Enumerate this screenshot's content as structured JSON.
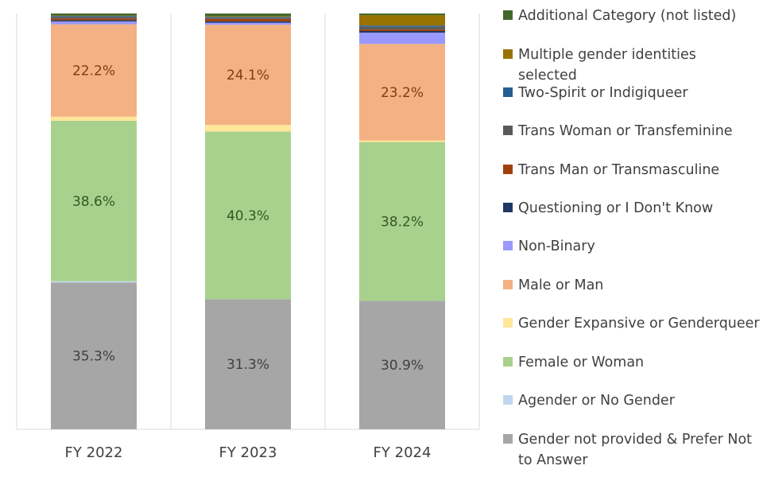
{
  "chart_data": {
    "type": "bar",
    "stacked": true,
    "normalized": true,
    "categories": [
      "FY 2022",
      "FY 2023",
      "FY 2024"
    ],
    "ylim": [
      0,
      100
    ],
    "grid": false,
    "legend_position": "right",
    "series": [
      {
        "name": "Gender not provided & Prefer Not to Answer",
        "color": "#a6a6a6",
        "label_color": "#404040",
        "values": [
          35.3,
          31.3,
          30.9
        ],
        "labels": [
          "35.3%",
          "31.3%",
          "30.9%"
        ]
      },
      {
        "name": "Agender or No Gender",
        "color": "#bdd7ee",
        "values": [
          0.3,
          0.0,
          0.0
        ],
        "labels": [
          "",
          "",
          ""
        ]
      },
      {
        "name": "Female or Woman",
        "color": "#a9d18e",
        "label_color": "#375623",
        "values": [
          38.6,
          40.3,
          38.2
        ],
        "labels": [
          "38.6%",
          "40.3%",
          "38.2%"
        ]
      },
      {
        "name": "Gender Expansive or Genderqueer",
        "color": "#ffe699",
        "values": [
          1.0,
          1.6,
          0.4
        ],
        "labels": [
          "",
          "",
          ""
        ]
      },
      {
        "name": "Male or Man",
        "color": "#f4b183",
        "label_color": "#843c0c",
        "values": [
          22.2,
          24.1,
          23.2
        ],
        "labels": [
          "22.2%",
          "24.1%",
          "23.2%"
        ]
      },
      {
        "name": "Non-Binary",
        "color": "#9999ff",
        "values": [
          0.7,
          0.5,
          2.7
        ],
        "labels": [
          "",
          "",
          ""
        ]
      },
      {
        "name": "Questioning or I Don't Know",
        "color": "#1f3864",
        "values": [
          0.3,
          0.3,
          0.4
        ],
        "labels": [
          "",
          "",
          ""
        ]
      },
      {
        "name": "Trans Man or Transmasculine",
        "color": "#a0410d",
        "values": [
          0.4,
          0.6,
          0.4
        ],
        "labels": [
          "",
          "",
          ""
        ]
      },
      {
        "name": "Trans Woman or Transfeminine",
        "color": "#595959",
        "values": [
          0.4,
          0.3,
          0.6
        ],
        "labels": [
          "",
          "",
          ""
        ]
      },
      {
        "name": "Two-Spirit or Indigiqueer",
        "color": "#255e91",
        "values": [
          0.2,
          0.2,
          0.3
        ],
        "labels": [
          "",
          "",
          ""
        ]
      },
      {
        "name": "Multiple gender identities selected",
        "color": "#997300",
        "values": [
          0.1,
          0.2,
          2.5
        ],
        "labels": [
          "",
          "",
          ""
        ]
      },
      {
        "name": "Additional Category (not listed)",
        "color": "#43682b",
        "values": [
          0.5,
          0.6,
          0.4
        ],
        "labels": [
          "",
          "",
          ""
        ]
      }
    ],
    "legend_order": [
      "Additional Category (not listed)",
      "Multiple gender identities selected",
      "Two-Spirit or Indigiqueer",
      "Trans Woman or Transfeminine",
      "Trans Man or Transmasculine",
      "Questioning or I Don't Know",
      "Non-Binary",
      "Male or Man",
      "Gender Expansive or Genderqueer",
      "Female or Woman",
      "Agender or No Gender",
      "Gender not provided & Prefer Not to Answer"
    ],
    "legend_display": [
      [
        "Additional Category (not listed)"
      ],
      [
        "Multiple gender identities",
        "selected"
      ],
      [
        "Two-Spirit or Indigiqueer"
      ],
      [
        "Trans Woman or Transfeminine"
      ],
      [
        "Trans Man or Transmasculine"
      ],
      [
        "Questioning or I Don't Know"
      ],
      [
        "Non-Binary"
      ],
      [
        "Male or Man"
      ],
      [
        "Gender Expansive or Genderqueer"
      ],
      [
        "Female or Woman"
      ],
      [
        "Agender or No Gender"
      ],
      [
        "Gender not provided & Prefer Not",
        "to Answer"
      ]
    ]
  }
}
